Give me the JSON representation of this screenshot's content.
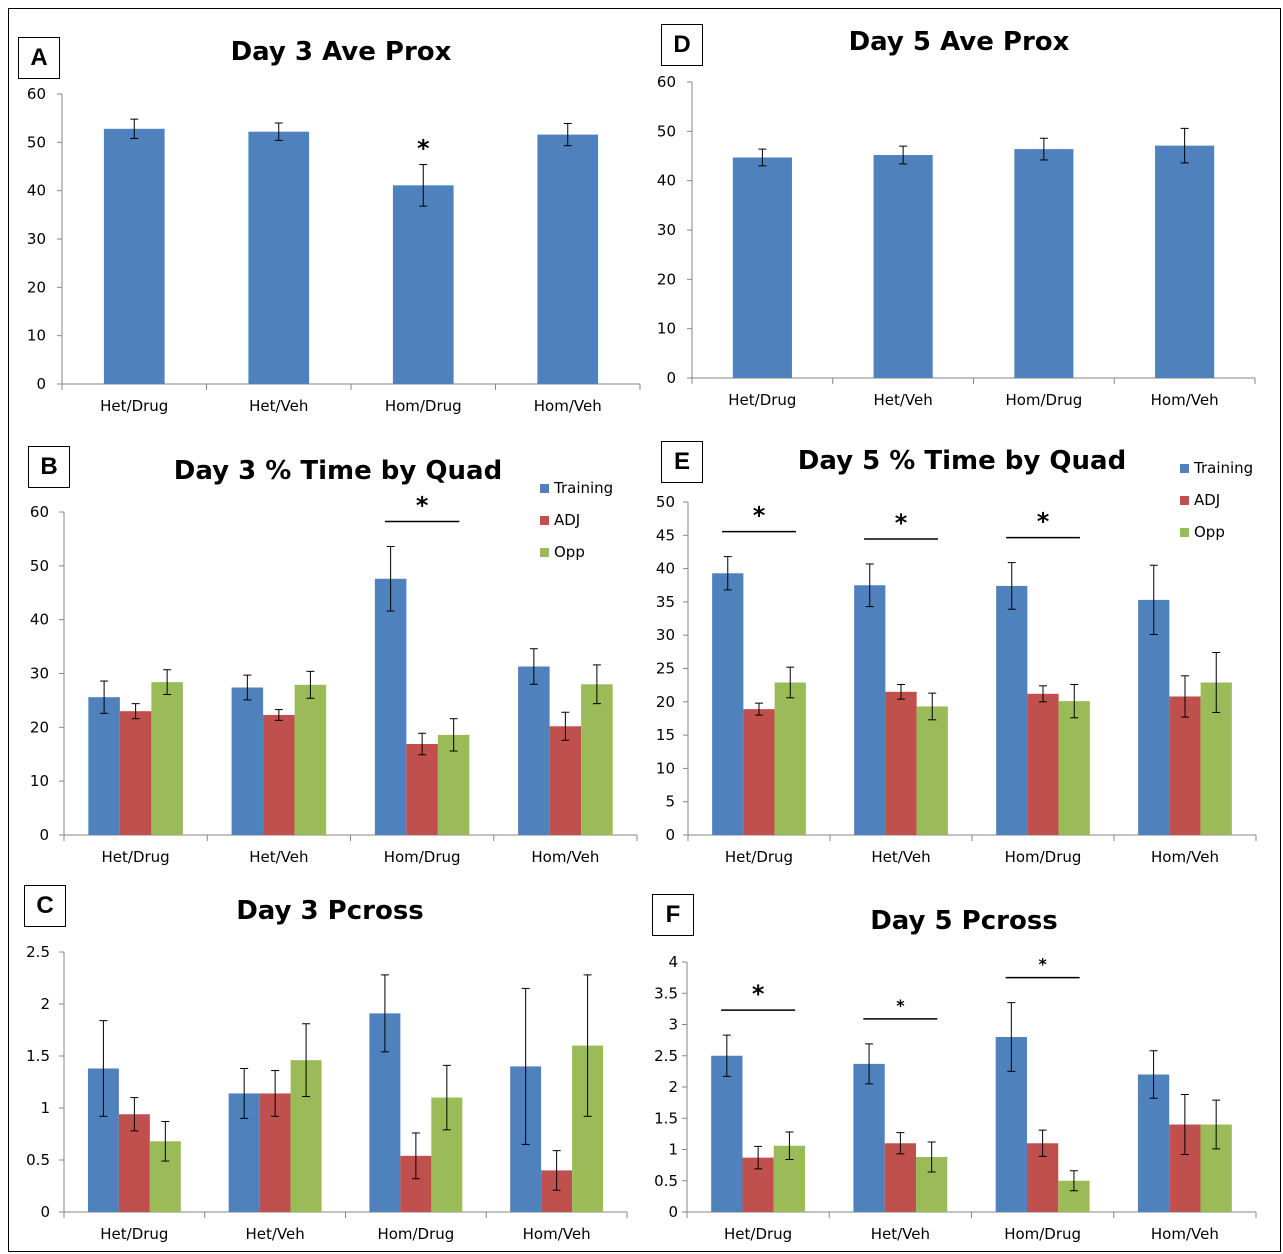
{
  "colors": {
    "training": "#4f81bd",
    "adj": "#c0504d",
    "opp": "#9bbb59",
    "axis": "#868686"
  },
  "panels": [
    {
      "letter": "A",
      "chart": {
        "type": "bar",
        "title": "Day 3 Ave Prox",
        "categories": [
          "Het/Drug",
          "Het/Veh",
          "Hom/Drug",
          "Hom/Veh"
        ],
        "series": [
          {
            "values": [
              52.8,
              52.2,
              41.1,
              51.6
            ],
            "err": [
              2,
              1.8,
              4.3,
              2.3
            ]
          }
        ],
        "ylim": [
          0,
          60
        ],
        "yticks": [
          "0",
          "10",
          "20",
          "30",
          "40",
          "50",
          "60"
        ],
        "sig": [
          {
            "group": 2,
            "mark": "*"
          }
        ]
      }
    },
    {
      "letter": "D",
      "chart": {
        "type": "bar",
        "title": "Day 5 Ave Prox",
        "categories": [
          "Het/Drug",
          "Het/Veh",
          "Hom/Drug",
          "Hom/Veh"
        ],
        "series": [
          {
            "values": [
              44.7,
              45.2,
              46.4,
              47.1
            ],
            "err": [
              1.7,
              1.8,
              2.2,
              3.5
            ]
          }
        ],
        "ylim": [
          0,
          60
        ],
        "yticks": [
          "0",
          "10",
          "20",
          "30",
          "40",
          "50",
          "60"
        ],
        "sig": []
      }
    },
    {
      "letter": "B",
      "chart": {
        "type": "bar",
        "title": "Day 3 % Time by Quad",
        "categories": [
          "Het/Drug",
          "Het/Veh",
          "Hom/Drug",
          "Hom/Veh"
        ],
        "series": [
          {
            "name": "Training",
            "values": [
              25.6,
              27.4,
              47.6,
              31.3
            ],
            "err": [
              3,
              2.3,
              6,
              3.3
            ]
          },
          {
            "name": "ADJ",
            "values": [
              23.0,
              22.3,
              16.9,
              20.2
            ],
            "err": [
              1.4,
              1,
              2,
              2.6
            ]
          },
          {
            "name": "Opp",
            "values": [
              28.4,
              27.9,
              18.6,
              28.0
            ],
            "err": [
              2.3,
              2.5,
              3,
              3.6
            ]
          }
        ],
        "ylim": [
          0,
          60
        ],
        "yticks": [
          "0",
          "10",
          "20",
          "30",
          "40",
          "50",
          "60"
        ],
        "sig": [
          {
            "group": 2,
            "mark": "*",
            "line": true
          }
        ]
      }
    },
    {
      "letter": "E",
      "chart": {
        "type": "bar",
        "title": "Day 5 % Time by Quad",
        "categories": [
          "Het/Drug",
          "Het/Veh",
          "Hom/Drug",
          "Hom/Veh"
        ],
        "series": [
          {
            "name": "Training",
            "values": [
              39.3,
              37.5,
              37.4,
              35.3
            ],
            "err": [
              2.5,
              3.2,
              3.5,
              5.2
            ]
          },
          {
            "name": "ADJ",
            "values": [
              18.9,
              21.5,
              21.2,
              20.8
            ],
            "err": [
              0.9,
              1.1,
              1.2,
              3.1
            ]
          },
          {
            "name": "Opp",
            "values": [
              22.9,
              19.3,
              20.1,
              22.9
            ],
            "err": [
              2.3,
              2,
              2.5,
              4.5
            ]
          }
        ],
        "ylim": [
          0,
          50
        ],
        "yticks": [
          "0",
          "5",
          "10",
          "15",
          "20",
          "25",
          "30",
          "35",
          "40",
          "45",
          "50"
        ],
        "sig": [
          {
            "group": 0,
            "mark": "*",
            "line": true
          },
          {
            "group": 1,
            "mark": "*",
            "line": true
          },
          {
            "group": 2,
            "mark": "*",
            "line": true
          }
        ]
      }
    },
    {
      "letter": "C",
      "chart": {
        "type": "bar",
        "title": "Day 3 Pcross",
        "categories": [
          "Het/Drug",
          "Het/Veh",
          "Hom/Drug",
          "Hom/Veh"
        ],
        "series": [
          {
            "name": "Training",
            "values": [
              1.38,
              1.14,
              1.91,
              1.4
            ],
            "err": [
              0.46,
              0.24,
              0.37,
              0.75
            ]
          },
          {
            "name": "ADJ",
            "values": [
              0.94,
              1.14,
              0.54,
              0.4
            ],
            "err": [
              0.16,
              0.22,
              0.22,
              0.19
            ]
          },
          {
            "name": "Opp",
            "values": [
              0.68,
              1.46,
              1.1,
              1.6
            ],
            "err": [
              0.19,
              0.35,
              0.31,
              0.68
            ]
          }
        ],
        "ylim": [
          0,
          2.5
        ],
        "yticks": [
          "0",
          "0.5",
          "1",
          "1.5",
          "2",
          "2.5"
        ],
        "sig": []
      }
    },
    {
      "letter": "F",
      "chart": {
        "type": "bar",
        "title": "Day 5 Pcross",
        "categories": [
          "Het/Drug",
          "Het/Veh",
          "Hom/Drug",
          "Hom/Veh"
        ],
        "series": [
          {
            "name": "Training",
            "values": [
              2.5,
              2.37,
              2.8,
              2.2
            ],
            "err": [
              0.33,
              0.32,
              0.55,
              0.38
            ]
          },
          {
            "name": "ADJ",
            "values": [
              0.87,
              1.1,
              1.1,
              1.4
            ],
            "err": [
              0.18,
              0.17,
              0.21,
              0.48
            ]
          },
          {
            "name": "Opp",
            "values": [
              1.06,
              0.88,
              0.5,
              1.4
            ],
            "err": [
              0.22,
              0.24,
              0.16,
              0.39
            ]
          }
        ],
        "ylim": [
          0,
          4
        ],
        "yticks": [
          "0",
          "0.5",
          "1",
          "1.5",
          "2",
          "2.5",
          "3",
          "3.5",
          "4"
        ],
        "sig": [
          {
            "group": 0,
            "mark": "*",
            "line": true
          },
          {
            "group": 1,
            "mark": "*",
            "line": true,
            "small": true
          },
          {
            "group": 2,
            "mark": "*",
            "line": true,
            "small": true
          }
        ]
      }
    }
  ]
}
